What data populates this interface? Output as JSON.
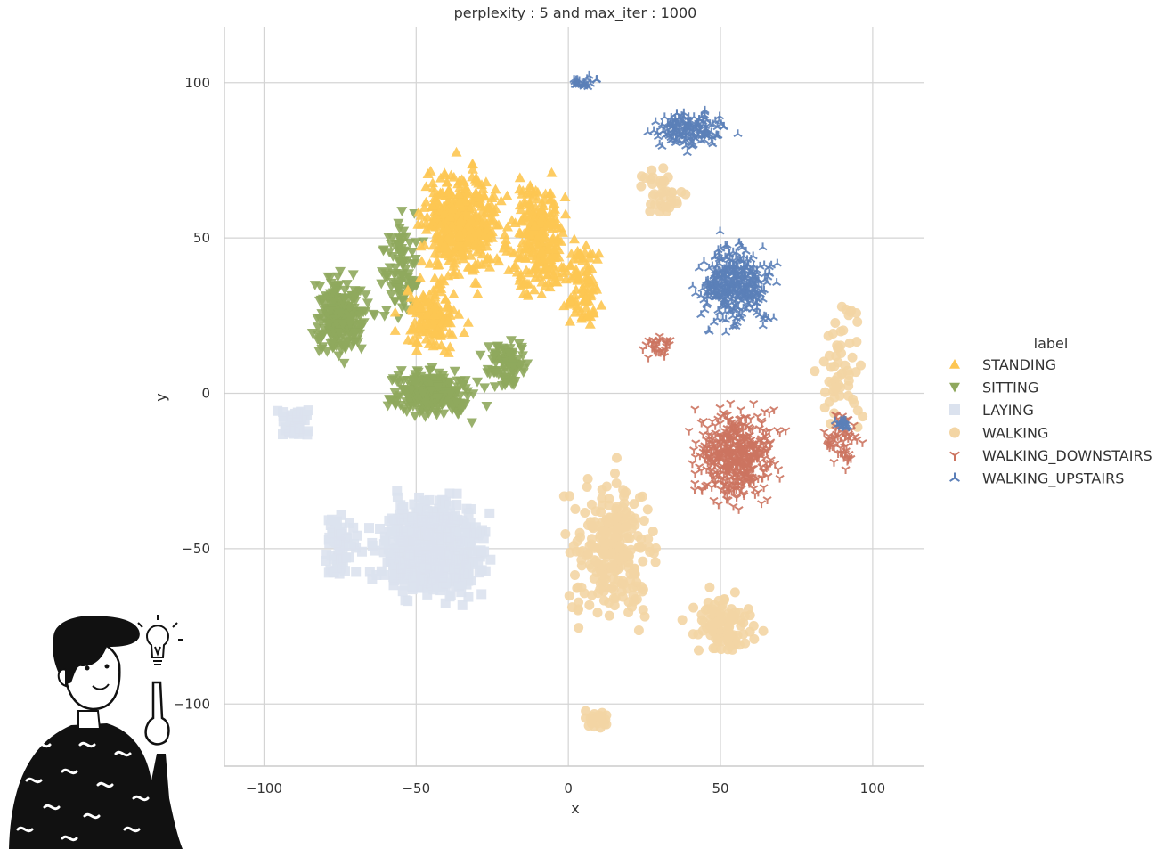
{
  "chart_data": {
    "type": "scatter",
    "title": "perplexity : 5 and max_iter : 1000",
    "xlabel": "x",
    "ylabel": "y",
    "xlim": [
      -113,
      117
    ],
    "ylim": [
      -120,
      118
    ],
    "xticks": [
      -100,
      -50,
      0,
      50,
      100
    ],
    "yticks": [
      100,
      50,
      0,
      -50,
      -100
    ],
    "xtick_labels": [
      "−100",
      "−50",
      "0",
      "50",
      "100"
    ],
    "ytick_labels": [
      "100",
      "50",
      "0",
      "−50",
      "−100"
    ],
    "grid": true,
    "legend_position": "right",
    "legend_title": "label",
    "series": [
      {
        "name": "STANDING",
        "color": "#fdc652",
        "marker": "triangle-up",
        "clusters": [
          [
            -35,
            55,
            22,
            30,
            420
          ],
          [
            -10,
            50,
            14,
            30,
            240
          ],
          [
            -45,
            25,
            16,
            18,
            140
          ],
          [
            5,
            35,
            10,
            25,
            90
          ]
        ]
      },
      {
        "name": "SITTING",
        "color": "#8fa85d",
        "marker": "triangle-down",
        "clusters": [
          [
            -75,
            25,
            15,
            22,
            240
          ],
          [
            -45,
            0,
            22,
            12,
            260
          ],
          [
            -55,
            40,
            10,
            25,
            100
          ],
          [
            -20,
            10,
            12,
            15,
            90
          ]
        ]
      },
      {
        "name": "LAYING",
        "color": "#dbe2ee",
        "marker": "square",
        "clusters": [
          [
            -45,
            -50,
            28,
            26,
            560
          ],
          [
            -90,
            -10,
            10,
            10,
            40
          ],
          [
            -75,
            -50,
            10,
            20,
            60
          ]
        ]
      },
      {
        "name": "WALKING",
        "color": "#f3d5a4",
        "marker": "circle",
        "clusters": [
          [
            15,
            -50,
            24,
            36,
            260
          ],
          [
            50,
            -75,
            18,
            16,
            110
          ],
          [
            90,
            10,
            12,
            35,
            60
          ],
          [
            30,
            65,
            14,
            18,
            40
          ],
          [
            10,
            -105,
            8,
            5,
            20
          ]
        ]
      },
      {
        "name": "WALKING_DOWNSTAIRS",
        "color": "#cc7460",
        "marker": "tri-down",
        "clusters": [
          [
            55,
            -20,
            22,
            24,
            460
          ],
          [
            90,
            -15,
            10,
            15,
            60
          ],
          [
            30,
            15,
            8,
            6,
            30
          ]
        ]
      },
      {
        "name": "WALKING_UPSTAIRS",
        "color": "#5b7fb8",
        "marker": "tri-up",
        "clusters": [
          [
            55,
            35,
            20,
            22,
            360
          ],
          [
            40,
            85,
            20,
            10,
            160
          ],
          [
            5,
            100,
            10,
            3,
            25
          ],
          [
            90,
            -10,
            4,
            4,
            20
          ]
        ]
      }
    ]
  }
}
